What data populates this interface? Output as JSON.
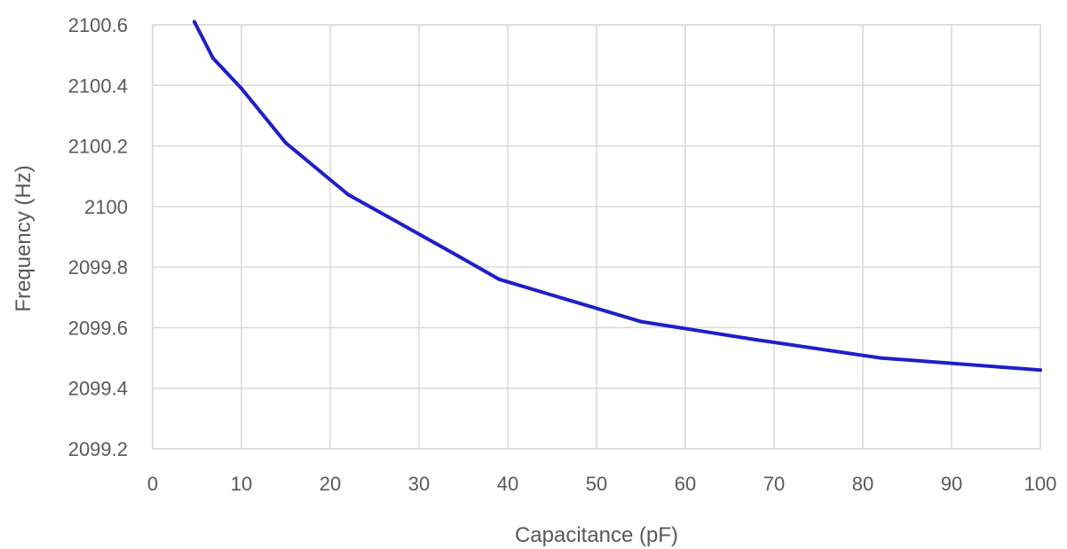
{
  "chart_data": {
    "type": "line",
    "title": "",
    "xlabel": "Capacitance (pF)",
    "ylabel": "Frequency (Hz)",
    "xlim": [
      0,
      100
    ],
    "ylim": [
      2099.2,
      2100.6
    ],
    "x_ticks": [
      0,
      10,
      20,
      30,
      40,
      50,
      60,
      70,
      80,
      90,
      100
    ],
    "y_ticks": [
      2099.2,
      2099.4,
      2099.6,
      2099.8,
      2100,
      2100.2,
      2100.4,
      2100.6
    ],
    "x_tick_labels": [
      "0",
      "10",
      "20",
      "30",
      "40",
      "50",
      "60",
      "70",
      "80",
      "90",
      "100"
    ],
    "y_tick_labels": [
      "2099.2",
      "2099.4",
      "2099.6",
      "2099.8",
      "2100",
      "2100.2",
      "2100.4",
      "2100.6"
    ],
    "grid": true,
    "legend": "none",
    "series": [
      {
        "color": "#1f1fc8",
        "x": [
          4.7,
          6.8,
          10,
          15,
          22,
          33,
          39,
          47,
          55,
          68,
          82,
          100
        ],
        "y": [
          2100.61,
          2100.49,
          2100.39,
          2100.21,
          2100.04,
          2099.86,
          2099.76,
          2099.69,
          2099.62,
          2099.56,
          2099.5,
          2099.46
        ]
      }
    ]
  }
}
